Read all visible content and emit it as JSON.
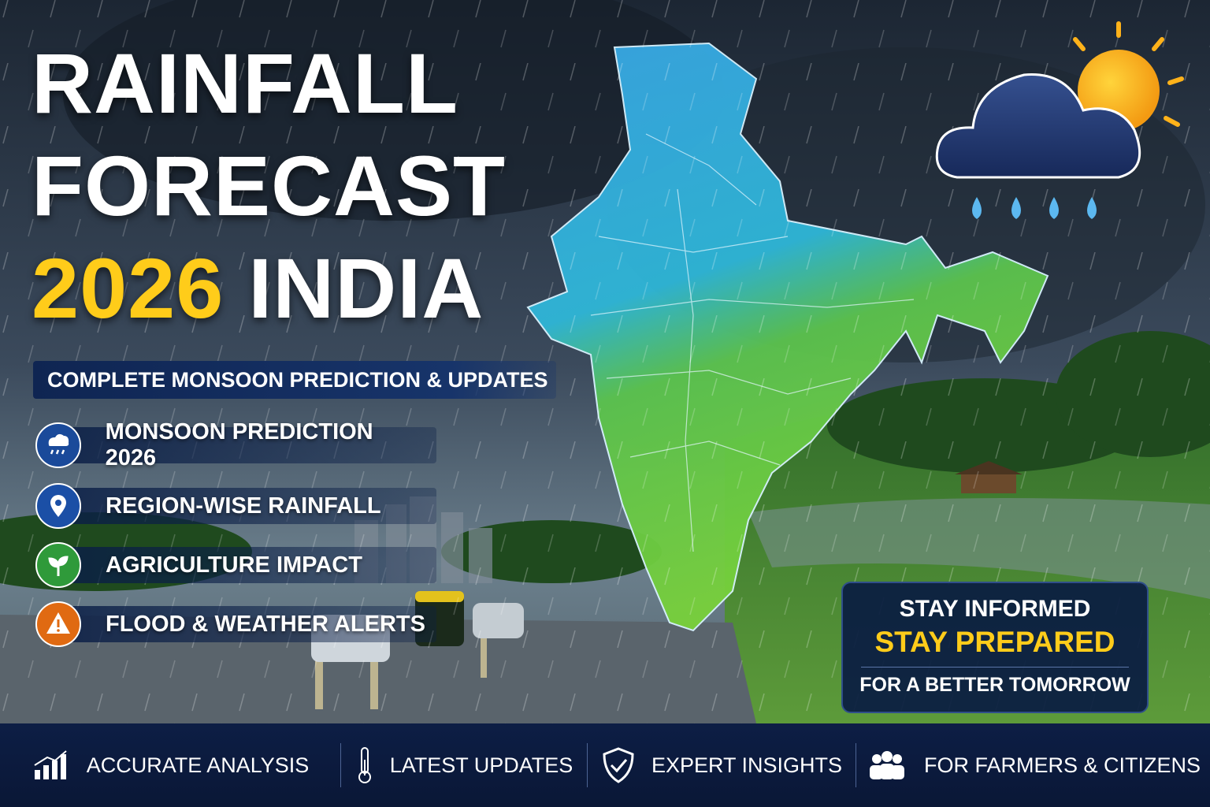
{
  "header": {
    "title_line1": "RAINFALL",
    "title_line2": "FORECAST",
    "title_year": "2026",
    "title_country": "INDIA",
    "subtitle": "COMPLETE MONSOON PREDICTION & UPDATES"
  },
  "features": [
    {
      "label": "MONSOON PREDICTION 2026"
    },
    {
      "label": "REGION-WISE RAINFALL"
    },
    {
      "label": "AGRICULTURE IMPACT"
    },
    {
      "label": "FLOOD & WEATHER ALERTS"
    }
  ],
  "callout": {
    "line1": "STAY INFORMED",
    "line2": "STAY PREPARED",
    "line3": "FOR A BETTER TOMORROW"
  },
  "footer": [
    {
      "label": "ACCURATE ANALYSIS"
    },
    {
      "label": "LATEST UPDATES"
    },
    {
      "label": "EXPERT INSIGHTS"
    },
    {
      "label": "FOR FARMERS & CITIZENS"
    }
  ]
}
